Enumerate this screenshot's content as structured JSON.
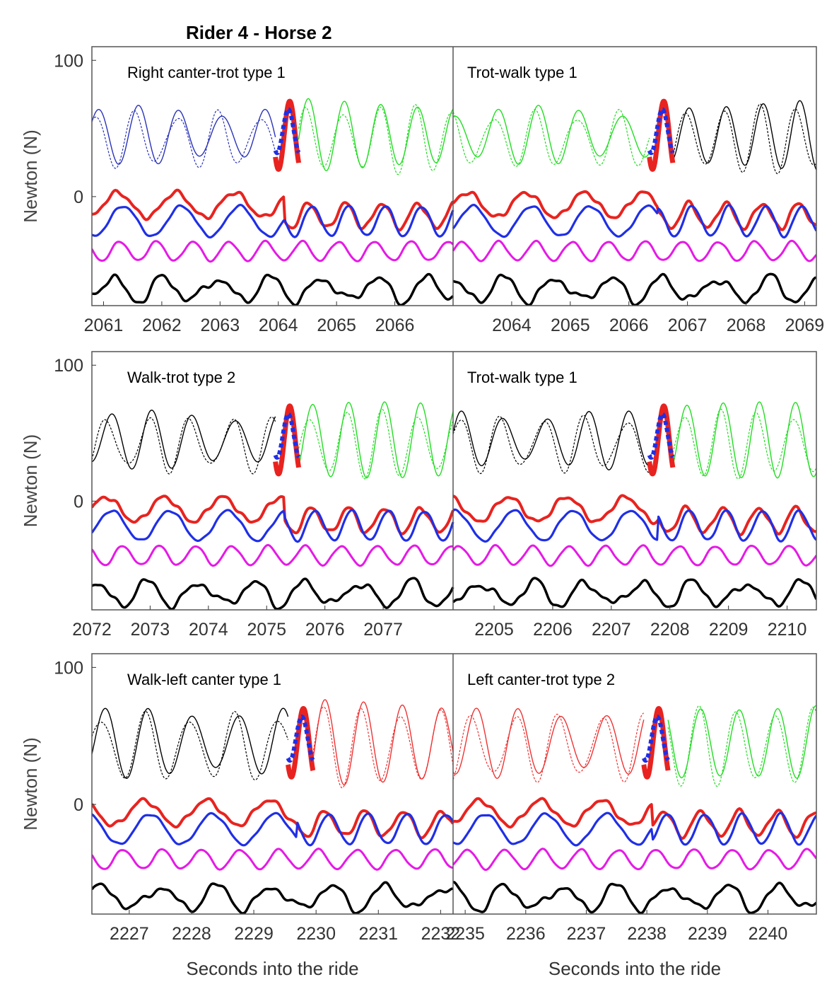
{
  "chart_data": {
    "type": "line",
    "title": "Rider 4 - Horse 2",
    "ylabel": "Newton (N)",
    "xlabel": "Seconds into the ride",
    "ylim": [
      -80,
      110
    ],
    "yticks": [
      0,
      100
    ],
    "series_colors": {
      "red": "#e8231f",
      "blue": "#1f2fe6",
      "magenta": "#e619e6",
      "black": "#000000",
      "green": "#22dd22",
      "dark_blue": "#2a33b8",
      "light_red": "#ee3333"
    },
    "panels": [
      {
        "row": 1,
        "left": {
          "annotation": "Right canter-trot type 1",
          "xlim": [
            2060.8,
            2067.0
          ],
          "xticks": [
            2061,
            2062,
            2063,
            2064,
            2065,
            2066
          ],
          "transition_time": 2064.1
        },
        "right": {
          "annotation": "Trot-walk type 1",
          "xlim": [
            2063.0,
            2069.2
          ],
          "xticks": [
            2064,
            2065,
            2066,
            2067,
            2068,
            2069
          ],
          "transition_time": 2066.5
        }
      },
      {
        "row": 2,
        "left": {
          "annotation": "Walk-trot type 2",
          "xlim": [
            2072.0,
            2078.2
          ],
          "xticks": [
            2072,
            2073,
            2074,
            2075,
            2076,
            2077
          ],
          "transition_time": 2075.3
        },
        "right": {
          "annotation": "Trot-walk type 1",
          "xlim": [
            2204.3,
            2210.5
          ],
          "xticks": [
            2205,
            2206,
            2207,
            2208,
            2209,
            2210
          ],
          "transition_time": 2207.8
        }
      },
      {
        "row": 3,
        "left": {
          "annotation": "Walk-left canter type 1",
          "xlim": [
            2226.4,
            2232.2
          ],
          "xticks": [
            2227,
            2228,
            2229,
            2230,
            2231,
            2232
          ],
          "transition_time": 2229.7
        },
        "right": {
          "annotation": "Left canter-trot type 2",
          "xlim": [
            2234.8,
            2240.8
          ],
          "xticks": [
            2235,
            2236,
            2237,
            2238,
            2239,
            2240
          ],
          "transition_time": 2238.1
        }
      }
    ]
  }
}
